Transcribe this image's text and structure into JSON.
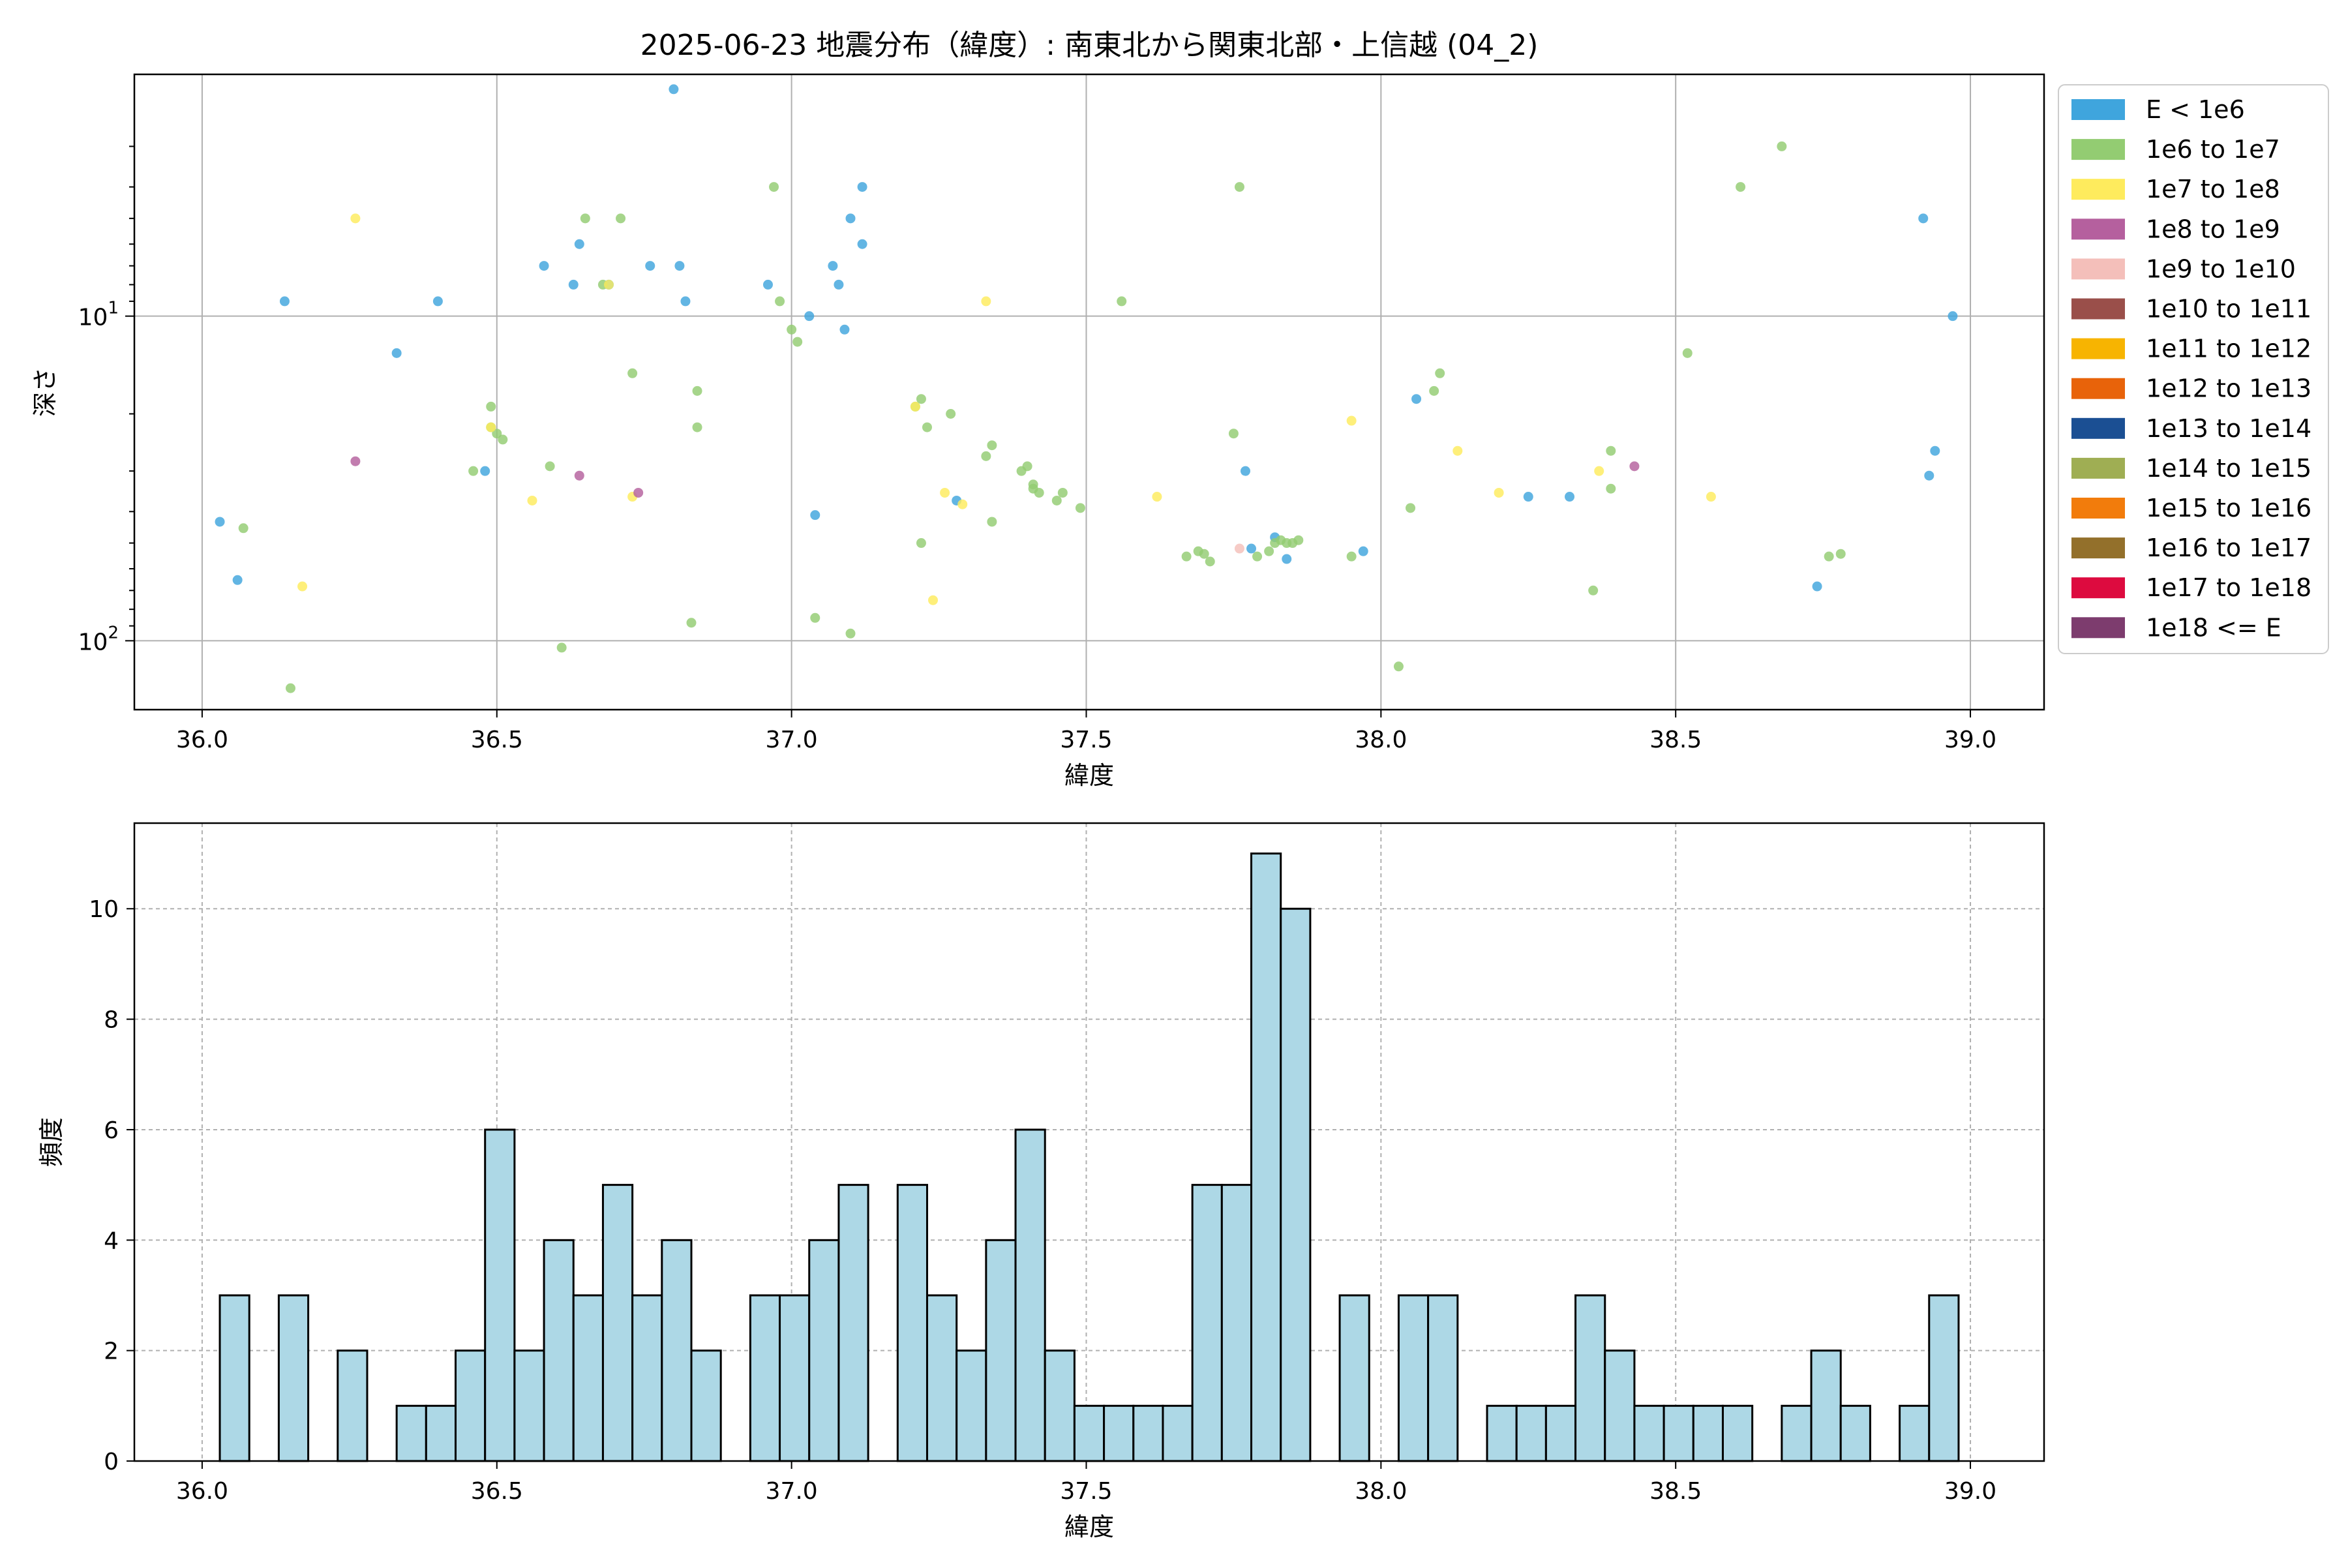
{
  "figure_title": "2025-06-23 地震分布（緯度）: 南東北から関東北部・上信越 (04_2)",
  "colors": {
    "hist_fill": "#add8e6",
    "hist_edge": "#000000",
    "grid": "#b0b0b0"
  },
  "chart_data": [
    {
      "type": "scatter",
      "xlabel": "緯度",
      "ylabel": "深さ",
      "xlim": [
        35.885,
        39.125
      ],
      "ylim": [
        163,
        1.8
      ],
      "y_scale": "log",
      "y_inverted": true,
      "grid": true,
      "legend_position": "outside-right",
      "xticks": [
        "36.0",
        "36.5",
        "37.0",
        "37.5",
        "38.0",
        "38.5",
        "39.0"
      ],
      "yticks": [
        {
          "value": 10,
          "base": "10",
          "exp": "1"
        },
        {
          "value": 100,
          "base": "10",
          "exp": "2"
        }
      ],
      "legend": [
        {
          "label": "E < 1e6",
          "color": "#3fa5dd"
        },
        {
          "label": "1e6 to 1e7",
          "color": "#93cc72"
        },
        {
          "label": "1e7 to 1e8",
          "color": "#feeb5d"
        },
        {
          "label": "1e8 to 1e9",
          "color": "#b5609e"
        },
        {
          "label": "1e9 to 1e10",
          "color": "#f4bfba"
        },
        {
          "label": "1e10 to 1e11",
          "color": "#9a4f4a"
        },
        {
          "label": "1e11 to 1e12",
          "color": "#f7b401"
        },
        {
          "label": "1e12 to 1e13",
          "color": "#e8630a"
        },
        {
          "label": "1e13 to 1e14",
          "color": "#1b4f93"
        },
        {
          "label": "1e14 to 1e15",
          "color": "#9fae53"
        },
        {
          "label": "1e15 to 1e16",
          "color": "#f27c0c"
        },
        {
          "label": "1e16 to 1e17",
          "color": "#93702b"
        },
        {
          "label": "1e17 to 1e18",
          "color": "#dd0b3f"
        },
        {
          "label": "1e18 <= E",
          "color": "#7d3c6e"
        }
      ],
      "series": [
        {
          "class": 0,
          "points": [
            [
              36.03,
              43
            ],
            [
              36.06,
              65
            ],
            [
              36.14,
              9
            ],
            [
              36.33,
              13
            ],
            [
              36.4,
              9
            ],
            [
              36.48,
              30
            ],
            [
              36.58,
              7
            ],
            [
              36.63,
              8
            ],
            [
              36.64,
              6
            ],
            [
              36.69,
              8
            ],
            [
              36.76,
              7
            ],
            [
              36.8,
              2
            ],
            [
              36.81,
              7
            ],
            [
              36.82,
              9
            ],
            [
              36.96,
              8
            ],
            [
              37.03,
              10
            ],
            [
              37.04,
              41
            ],
            [
              37.07,
              7
            ],
            [
              37.08,
              8
            ],
            [
              37.09,
              11
            ],
            [
              37.1,
              5
            ],
            [
              37.12,
              4
            ],
            [
              37.12,
              6
            ],
            [
              37.28,
              37
            ],
            [
              37.77,
              30
            ],
            [
              37.78,
              52
            ],
            [
              37.82,
              48
            ],
            [
              37.84,
              56
            ],
            [
              37.97,
              53
            ],
            [
              38.06,
              18
            ],
            [
              38.25,
              36
            ],
            [
              38.32,
              36
            ],
            [
              38.74,
              68
            ],
            [
              38.92,
              5
            ],
            [
              38.93,
              31
            ],
            [
              38.94,
              26
            ],
            [
              38.97,
              10
            ]
          ]
        },
        {
          "class": 1,
          "points": [
            [
              36.07,
              45
            ],
            [
              36.15,
              140
            ],
            [
              36.46,
              30
            ],
            [
              36.49,
              19
            ],
            [
              36.49,
              22
            ],
            [
              36.5,
              23
            ],
            [
              36.51,
              24
            ],
            [
              36.59,
              29
            ],
            [
              36.61,
              105
            ],
            [
              36.65,
              5
            ],
            [
              36.68,
              8
            ],
            [
              36.71,
              5
            ],
            [
              36.73,
              15
            ],
            [
              36.83,
              88
            ],
            [
              36.84,
              22
            ],
            [
              36.84,
              17
            ],
            [
              36.97,
              4
            ],
            [
              36.98,
              9
            ],
            [
              37.0,
              11
            ],
            [
              37.01,
              12
            ],
            [
              37.04,
              85
            ],
            [
              37.1,
              95
            ],
            [
              37.21,
              19
            ],
            [
              37.22,
              50
            ],
            [
              37.22,
              18
            ],
            [
              37.23,
              22
            ],
            [
              37.27,
              20
            ],
            [
              37.33,
              27
            ],
            [
              37.34,
              25
            ],
            [
              37.34,
              43
            ],
            [
              37.39,
              30
            ],
            [
              37.4,
              29
            ],
            [
              37.41,
              33
            ],
            [
              37.41,
              34
            ],
            [
              37.42,
              35
            ],
            [
              37.45,
              37
            ],
            [
              37.46,
              35
            ],
            [
              37.49,
              39
            ],
            [
              37.56,
              9
            ],
            [
              37.67,
              55
            ],
            [
              37.69,
              53
            ],
            [
              37.7,
              54
            ],
            [
              37.71,
              57
            ],
            [
              37.75,
              23
            ],
            [
              37.76,
              4
            ],
            [
              37.79,
              55
            ],
            [
              37.81,
              53
            ],
            [
              37.82,
              50
            ],
            [
              37.83,
              49
            ],
            [
              37.84,
              50
            ],
            [
              37.85,
              50
            ],
            [
              37.86,
              49
            ],
            [
              37.95,
              55
            ],
            [
              38.03,
              120
            ],
            [
              38.05,
              39
            ],
            [
              38.09,
              17
            ],
            [
              38.1,
              15
            ],
            [
              38.36,
              70
            ],
            [
              38.39,
              34
            ],
            [
              38.39,
              26
            ],
            [
              38.52,
              13
            ],
            [
              38.61,
              4
            ],
            [
              38.68,
              3
            ],
            [
              38.76,
              55
            ],
            [
              38.78,
              54
            ]
          ]
        },
        {
          "class": 2,
          "points": [
            [
              36.17,
              68
            ],
            [
              36.26,
              5
            ],
            [
              36.49,
              22
            ],
            [
              36.56,
              37
            ],
            [
              36.69,
              8
            ],
            [
              36.73,
              36
            ],
            [
              37.21,
              19
            ],
            [
              37.24,
              75
            ],
            [
              37.26,
              35
            ],
            [
              37.29,
              38
            ],
            [
              37.33,
              9
            ],
            [
              37.62,
              36
            ],
            [
              37.95,
              21
            ],
            [
              38.13,
              26
            ],
            [
              38.2,
              35
            ],
            [
              38.37,
              30
            ],
            [
              38.56,
              36
            ]
          ]
        },
        {
          "class": 3,
          "points": [
            [
              36.26,
              28
            ],
            [
              36.64,
              31
            ],
            [
              36.74,
              35
            ],
            [
              38.43,
              29
            ]
          ]
        },
        {
          "class": 4,
          "points": [
            [
              37.76,
              52
            ]
          ]
        }
      ]
    },
    {
      "type": "bar",
      "xlabel": "緯度",
      "ylabel": "頻度",
      "xlim": [
        35.885,
        39.125
      ],
      "ylim": [
        0,
        11.55
      ],
      "grid": true,
      "xticks": [
        "36.0",
        "36.5",
        "37.0",
        "37.5",
        "38.0",
        "38.5",
        "39.0"
      ],
      "yticks": [
        "0",
        "2",
        "4",
        "6",
        "8",
        "10"
      ],
      "bin_start": 36.03,
      "bin_width": 0.05,
      "values": [
        3,
        0,
        3,
        0,
        2,
        0,
        1,
        1,
        2,
        6,
        2,
        4,
        3,
        5,
        3,
        4,
        2,
        0,
        3,
        3,
        4,
        5,
        0,
        5,
        3,
        2,
        4,
        6,
        2,
        1,
        1,
        1,
        1,
        5,
        5,
        11,
        10,
        0,
        3,
        0,
        3,
        3,
        0,
        1,
        1,
        1,
        3,
        2,
        1,
        1,
        1,
        1,
        0,
        1,
        2,
        1,
        0,
        1,
        3
      ]
    }
  ]
}
